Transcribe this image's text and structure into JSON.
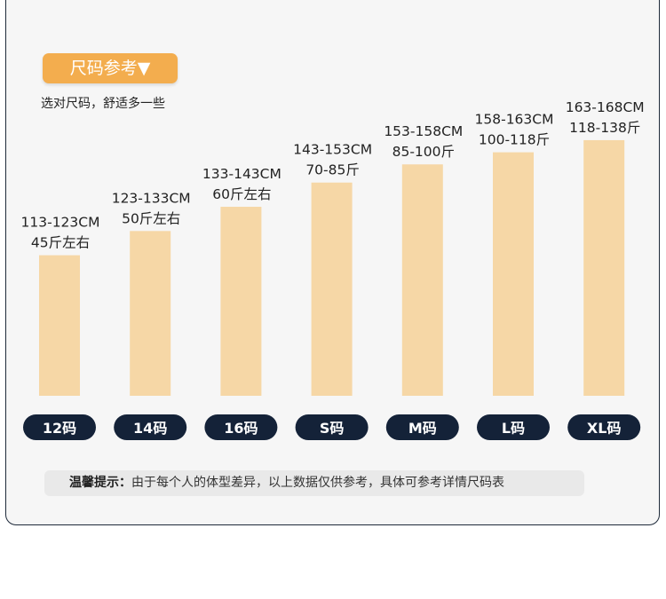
{
  "header": {
    "badge_label": "尺码参考▼",
    "subtitle": "选对尺码，舒适多一些"
  },
  "colors": {
    "bar": "#f6d7a6",
    "pill": "#142238",
    "badge": "#f3ad4e",
    "border": "#1e2a3a"
  },
  "chart_data": {
    "type": "bar",
    "categories": [
      "12码",
      "14码",
      "16码",
      "S码",
      "M码",
      "L码",
      "XL码"
    ],
    "height_ranges": [
      "113-123CM",
      "123-133CM",
      "133-143CM",
      "143-153CM",
      "153-158CM",
      "158-163CM",
      "163-168CM"
    ],
    "weight_labels": [
      "45斤左右",
      "50斤左右",
      "60斤左右",
      "70-85斤",
      "85-100斤",
      "100-118斤",
      "118-138斤"
    ],
    "values": [
      118,
      128,
      138,
      148,
      155.5,
      160.5,
      165.5
    ],
    "ylim": [
      60,
      175
    ],
    "grid": false
  },
  "note": {
    "label": "温馨提示：",
    "text": "由于每个人的体型差异，以上数据仅供参考，具体可参考详情尺码表"
  }
}
